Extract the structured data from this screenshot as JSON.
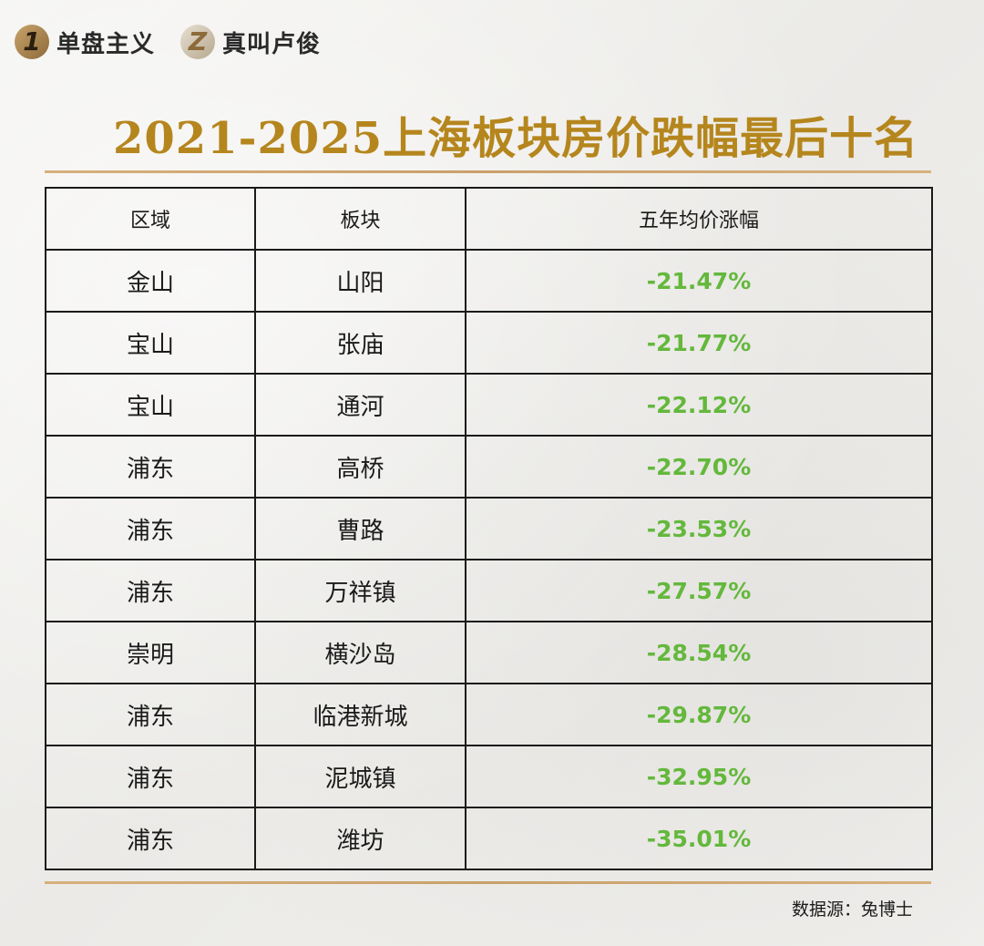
{
  "header": {
    "brand1_badge": "1",
    "brand1_name": "单盘主义",
    "brand2_badge": "Z",
    "brand2_name": "真叫卢俊"
  },
  "title": "2021-2025上海板块房价跌幅最后十名",
  "colors": {
    "title": "#b5861d",
    "negative_change": "#64b83c",
    "rule": "#caa06a"
  },
  "chart_data": {
    "type": "table",
    "title": "2021-2025上海板块房价跌幅最后十名",
    "columns": [
      "区域",
      "板块",
      "五年均价涨幅"
    ],
    "rows": [
      [
        "金山",
        "山阳",
        "-21.47%"
      ],
      [
        "宝山",
        "张庙",
        "-21.77%"
      ],
      [
        "宝山",
        "通河",
        "-22.12%"
      ],
      [
        "浦东",
        "高桥",
        "-22.70%"
      ],
      [
        "浦东",
        "曹路",
        "-23.53%"
      ],
      [
        "浦东",
        "万祥镇",
        "-27.57%"
      ],
      [
        "崇明",
        "横沙岛",
        "-28.54%"
      ],
      [
        "浦东",
        "临港新城",
        "-29.87%"
      ],
      [
        "浦东",
        "泥城镇",
        "-32.95%"
      ],
      [
        "浦东",
        "潍坊",
        "-35.01%"
      ]
    ]
  },
  "source": "数据源：兔博士"
}
